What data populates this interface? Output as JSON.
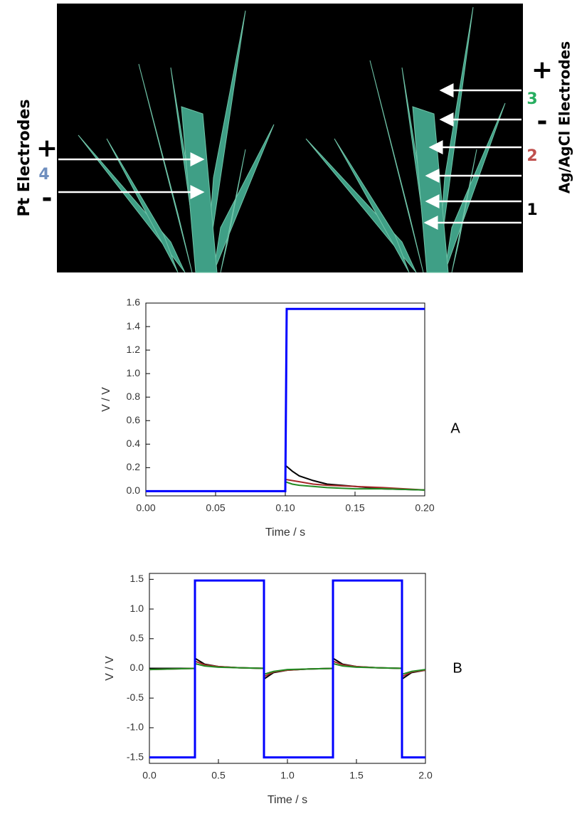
{
  "photo": {
    "left_label": "Pt Electrodes",
    "left_plus": "+",
    "left_number": "4",
    "left_minus": "-",
    "right_label": "Ag/AgCl Electrodes",
    "right_plus": "+",
    "right_minus": "-",
    "electrode_labels": [
      "3",
      "2",
      "1"
    ]
  },
  "chart_data": [
    {
      "type": "line",
      "panel": "A",
      "x_label": "Time / s",
      "y_label": "V / V",
      "xlim": [
        0,
        0.2
      ],
      "ylim": [
        -0.04,
        1.6
      ],
      "xticks": [
        {
          "value": 0,
          "label": "0.00"
        },
        {
          "value": 0.05,
          "label": "0.05"
        },
        {
          "value": 0.1,
          "label": "0.10"
        },
        {
          "value": 0.15,
          "label": "0.15"
        },
        {
          "value": 0.2,
          "label": "0.20"
        }
      ],
      "yticks": [
        {
          "value": 0,
          "label": "0.0"
        },
        0.2,
        0.4,
        0.6,
        0.8,
        {
          "value": 1,
          "label": "1.0"
        },
        1.2,
        1.4,
        1.6
      ],
      "series": [
        {
          "color": "#000000",
          "x": [
            0,
            0.1,
            0.1,
            0.105,
            0.11,
            0.12,
            0.13,
            0.15,
            0.17,
            0.2
          ],
          "values": [
            0,
            0,
            0.22,
            0.17,
            0.13,
            0.09,
            0.06,
            0.04,
            0.02,
            0.01
          ]
        },
        {
          "color": "#a52a2a",
          "x": [
            0,
            0.1,
            0.1,
            0.105,
            0.11,
            0.12,
            0.13,
            0.15,
            0.17,
            0.2
          ],
          "values": [
            0,
            0,
            0.1,
            0.09,
            0.08,
            0.06,
            0.05,
            0.04,
            0.03,
            0.01
          ]
        },
        {
          "color": "#228b22",
          "x": [
            0,
            0.1,
            0.1,
            0.105,
            0.11,
            0.12,
            0.13,
            0.15,
            0.17,
            0.2
          ],
          "values": [
            0,
            0,
            0.08,
            0.06,
            0.05,
            0.04,
            0.03,
            0.02,
            0.02,
            0.01
          ]
        },
        {
          "color": "#0000ff",
          "x": [
            0,
            0.1,
            0.101,
            0.2
          ],
          "values": [
            0,
            0,
            1.55,
            1.55
          ]
        }
      ]
    },
    {
      "type": "line",
      "panel": "B",
      "x_label": "Time / s",
      "y_label": "V / V",
      "xlim": [
        0,
        2
      ],
      "ylim": [
        -1.6,
        1.6
      ],
      "xticks": [
        {
          "value": 0,
          "label": "0.0"
        },
        0.5,
        {
          "value": 1,
          "label": "1.0"
        },
        1.5,
        {
          "value": 2,
          "label": "2.0"
        }
      ],
      "yticks": [
        -1.5,
        {
          "value": -1,
          "label": "-1.0"
        },
        -0.5,
        {
          "value": 0,
          "label": "0.0"
        },
        0.5,
        {
          "value": 1,
          "label": "1.0"
        },
        1.5
      ],
      "series": [
        {
          "color": "#000000",
          "x": [
            0,
            0.33,
            0.33,
            0.4,
            0.5,
            0.65,
            0.83,
            0.83,
            0.9,
            1.0,
            1.15,
            1.33,
            1.33,
            1.4,
            1.5,
            1.65,
            1.83,
            1.83,
            1.9,
            2.0
          ],
          "values": [
            0,
            0,
            0.17,
            0.07,
            0.03,
            0.01,
            0,
            -0.18,
            -0.07,
            -0.03,
            -0.01,
            0,
            0.17,
            0.07,
            0.03,
            0.01,
            0,
            -0.18,
            -0.07,
            -0.03
          ]
        },
        {
          "color": "#a52a2a",
          "x": [
            0,
            0.33,
            0.33,
            0.4,
            0.5,
            0.65,
            0.83,
            0.83,
            0.9,
            1.0,
            1.15,
            1.33,
            1.33,
            1.4,
            1.5,
            1.65,
            1.83,
            1.83,
            1.9,
            2.0
          ],
          "values": [
            -0.02,
            0,
            0.12,
            0.06,
            0.03,
            0.01,
            0,
            -0.14,
            -0.06,
            -0.03,
            -0.01,
            0,
            0.12,
            0.06,
            0.03,
            0.01,
            0,
            -0.14,
            -0.06,
            -0.03
          ]
        },
        {
          "color": "#228b22",
          "x": [
            0,
            0.33,
            0.33,
            0.4,
            0.5,
            0.65,
            0.83,
            0.83,
            0.9,
            1.0,
            1.15,
            1.33,
            1.33,
            1.4,
            1.5,
            1.65,
            1.83,
            1.83,
            1.9,
            2.0
          ],
          "values": [
            -0.02,
            0,
            0.08,
            0.04,
            0.02,
            0.01,
            0,
            -0.1,
            -0.05,
            -0.02,
            -0.01,
            0,
            0.08,
            0.04,
            0.02,
            0.01,
            0,
            -0.1,
            -0.05,
            -0.02
          ]
        },
        {
          "color": "#0000ff",
          "x": [
            0,
            0.33,
            0.33,
            0.83,
            0.83,
            1.33,
            1.33,
            1.83,
            1.83,
            2
          ],
          "values": [
            -1.5,
            -1.5,
            1.48,
            1.48,
            -1.5,
            -1.5,
            1.48,
            1.48,
            -1.5,
            -1.5
          ]
        }
      ]
    }
  ]
}
